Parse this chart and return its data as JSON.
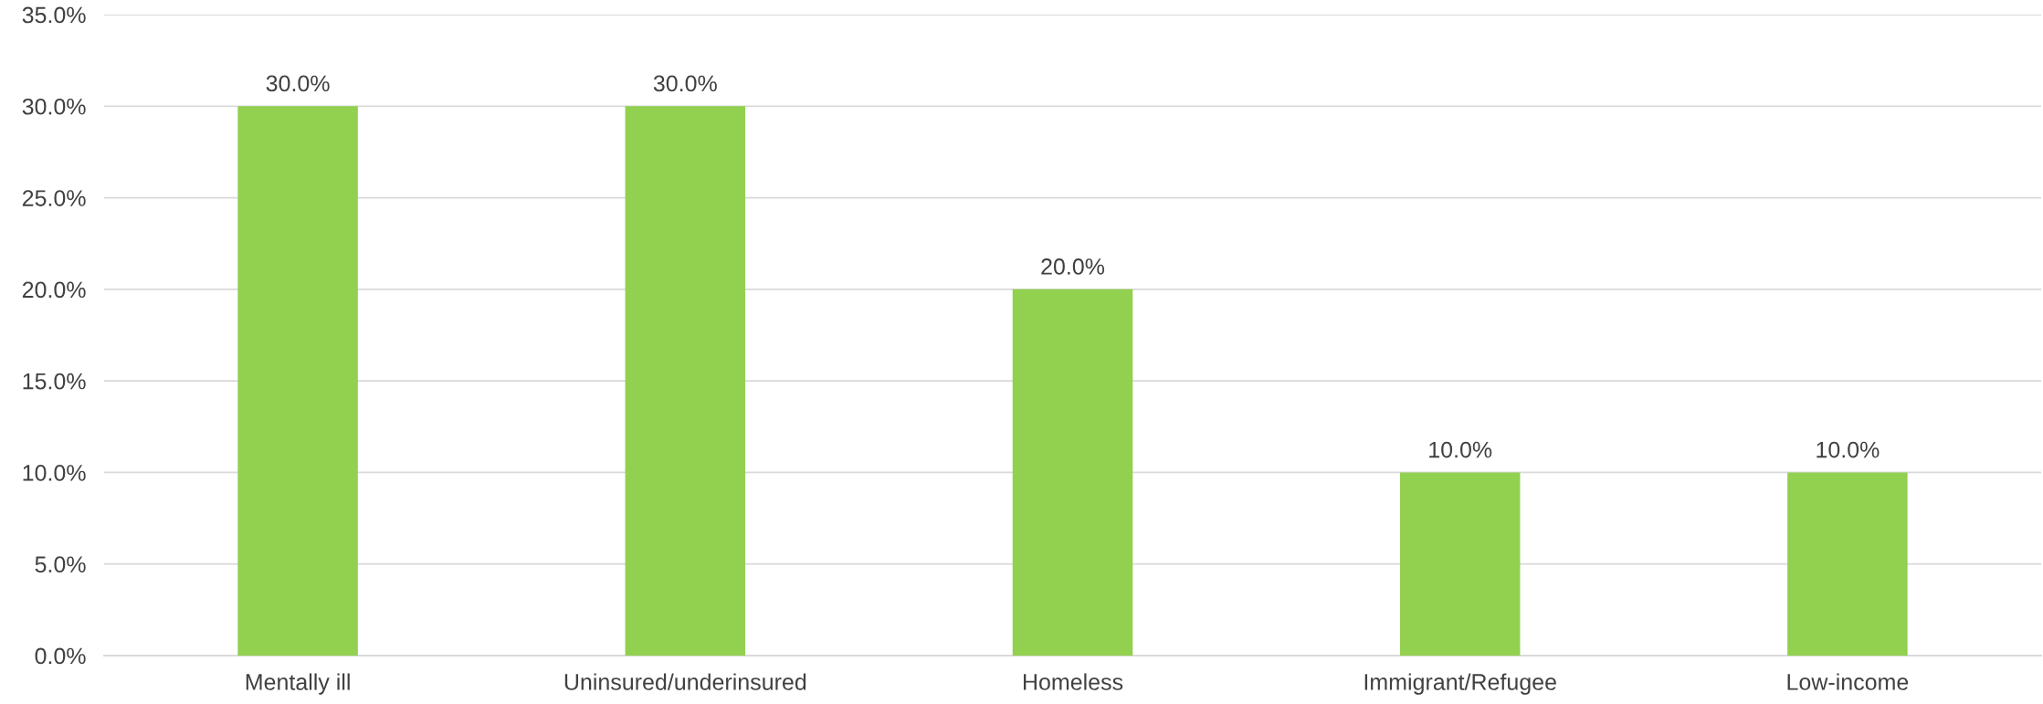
{
  "chart_data": {
    "type": "bar",
    "categories": [
      "Mentally ill",
      "Uninsured/underinsured",
      "Homeless",
      "Immigrant/Refugee",
      "Low-income"
    ],
    "values": [
      30,
      30,
      20,
      10,
      10
    ],
    "value_labels": [
      "30.0%",
      "30.0%",
      "20.0%",
      "10.0%",
      "10.0%"
    ],
    "color": "#92d050",
    "ylim": [
      0,
      35
    ],
    "yticks": [
      {
        "value": 0,
        "label": "0.0%"
      },
      {
        "value": 5,
        "label": "5.0%"
      },
      {
        "value": 10,
        "label": "10.0%"
      },
      {
        "value": 15,
        "label": "15.0%"
      },
      {
        "value": 20,
        "label": "20.0%"
      },
      {
        "value": 25,
        "label": "25.0%"
      },
      {
        "value": 30,
        "label": "30.0%"
      },
      {
        "value": 35,
        "label": "35.0%"
      }
    ],
    "grid": "y",
    "legend": false
  }
}
